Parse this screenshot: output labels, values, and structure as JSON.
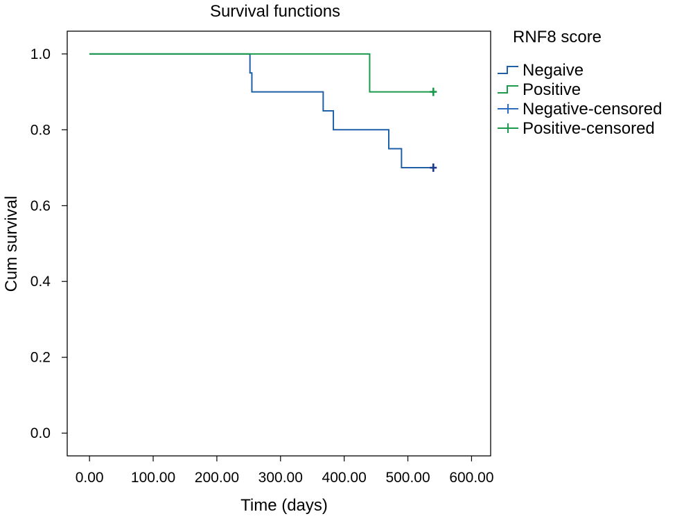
{
  "chart_data": {
    "type": "line",
    "title": "Survival functions",
    "xlabel": "Time (days)",
    "ylabel": "Cum survival",
    "xlim": [
      -35,
      630
    ],
    "ylim": [
      -0.06,
      1.06
    ],
    "x_ticks": [
      0,
      100,
      200,
      300,
      400,
      500,
      600
    ],
    "x_tick_labels": [
      "0.00",
      "100.00",
      "200.00",
      "300.00",
      "400.00",
      "500.00",
      "600.00"
    ],
    "y_ticks": [
      0.0,
      0.2,
      0.4,
      0.6,
      0.8,
      1.0
    ],
    "y_tick_labels": [
      "0.0",
      "0.2",
      "0.4",
      "0.6",
      "0.8",
      "1.0"
    ],
    "grid": false,
    "legend_title": "RNF8 score",
    "legend_position": "right",
    "series": [
      {
        "name": "Negaive",
        "color": "#1f5fa8",
        "step": true,
        "x": [
          0,
          252,
          255,
          367,
          383,
          470,
          490,
          540
        ],
        "y": [
          1.0,
          0.95,
          0.9,
          0.85,
          0.8,
          0.75,
          0.7,
          0.7
        ]
      },
      {
        "name": "Positive",
        "color": "#1a9a4a",
        "step": true,
        "x": [
          0,
          440,
          540
        ],
        "y": [
          1.0,
          0.9,
          0.9
        ]
      }
    ],
    "censored": [
      {
        "name": "Negative-censored",
        "color": "#1a3a8a",
        "legend_color": "#2b6cc0",
        "x": [
          540
        ],
        "y": [
          0.7
        ]
      },
      {
        "name": "Positive-censored",
        "color": "#1a9a4a",
        "legend_color": "#1a9a4a",
        "x": [
          540
        ],
        "y": [
          0.9
        ]
      }
    ]
  }
}
